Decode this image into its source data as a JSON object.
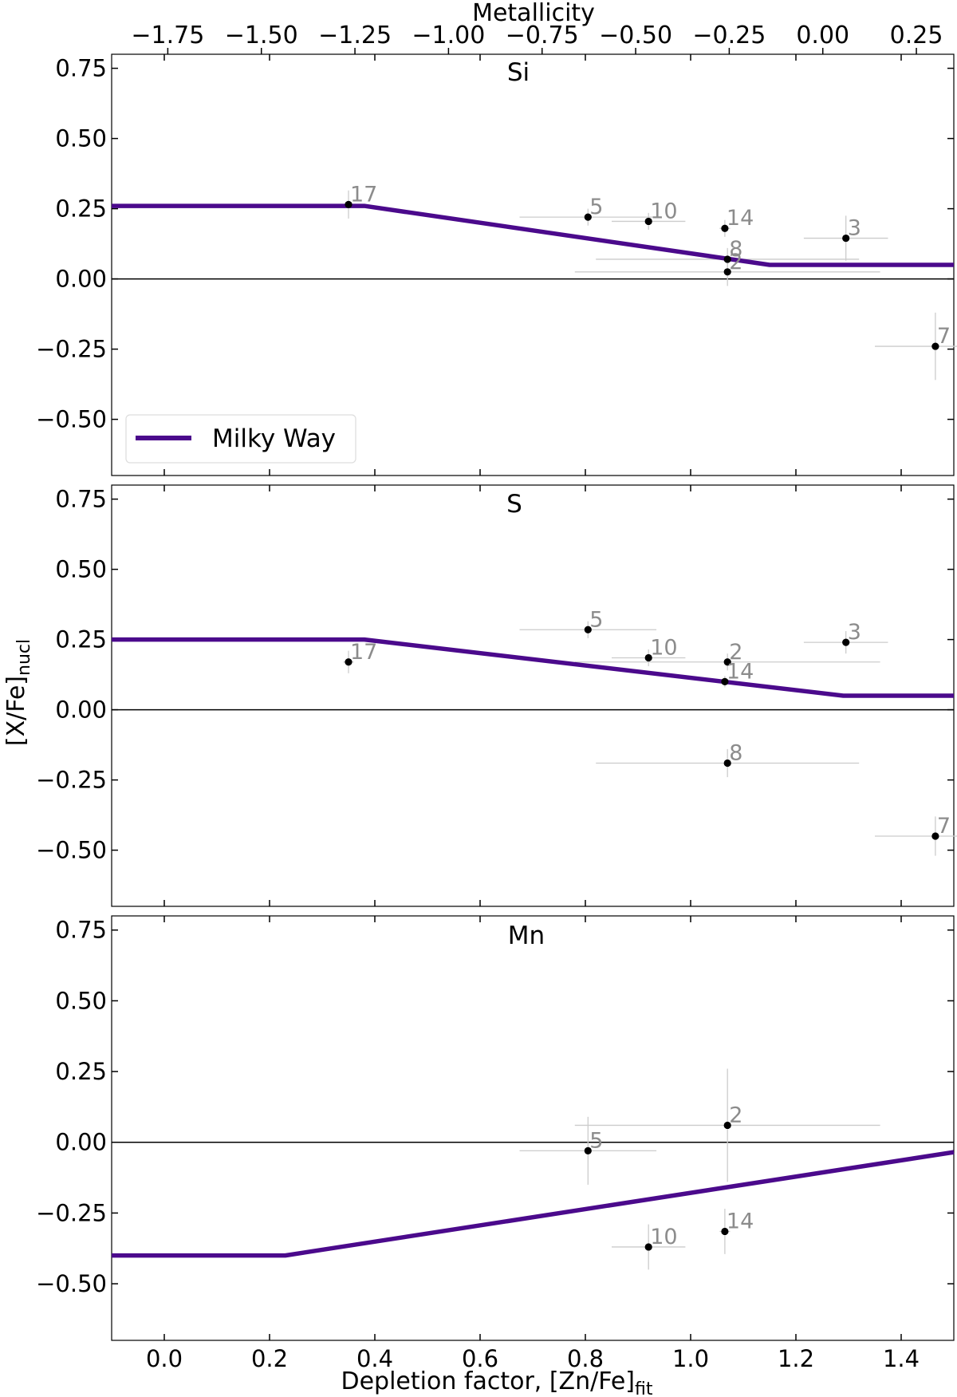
{
  "figure": {
    "top_axis_label": "Metallicity",
    "x_label_main": "Depletion factor, [Zn/Fe]",
    "x_label_sub": "fit",
    "y_label_main": "[X/Fe]",
    "y_label_sub": "nucl",
    "legend_label": "Milky Way",
    "model_color": "#4b0a8c",
    "point_color": "#000000",
    "errorbar_color": "#cccccc",
    "label_color": "#8c8c8c"
  },
  "chart_data": {
    "type": "scatter",
    "xlim": [
      -0.1,
      1.5
    ],
    "ylim": [
      -0.7,
      0.8
    ],
    "x_ticks": [
      0.0,
      0.2,
      0.4,
      0.6,
      0.8,
      1.0,
      1.2,
      1.4
    ],
    "x_tick_labels": [
      "0.0",
      "0.2",
      "0.4",
      "0.6",
      "0.8",
      "1.0",
      "1.2",
      "1.4"
    ],
    "y_ticks": [
      -0.5,
      -0.25,
      0.0,
      0.25,
      0.5,
      0.75
    ],
    "y_tick_labels": [
      "−0.50",
      "−0.25",
      "0.00",
      "0.25",
      "0.50",
      "0.75"
    ],
    "top_xlim": [
      -1.9,
      0.35
    ],
    "top_ticks": [
      -1.75,
      -1.5,
      -1.25,
      -1.0,
      -0.75,
      -0.5,
      -0.25,
      0.0,
      0.25
    ],
    "top_tick_labels": [
      "−1.75",
      "−1.50",
      "−1.25",
      "−1.00",
      "−0.75",
      "−0.50",
      "−0.25",
      "0.00",
      "0.25"
    ],
    "legend_position": "lower-left of top panel",
    "panels": [
      {
        "title": "Si",
        "model": {
          "name": "Milky Way",
          "x": [
            -0.1,
            0.38,
            1.15,
            1.5
          ],
          "y": [
            0.26,
            0.26,
            0.05,
            0.05
          ]
        },
        "points": [
          {
            "label": "17",
            "x": 0.35,
            "y": 0.265,
            "xerr": 0.01,
            "yerr": 0.05
          },
          {
            "label": "5",
            "x": 0.805,
            "y": 0.22,
            "xerr": 0.13,
            "yerr": 0.03
          },
          {
            "label": "10",
            "x": 0.92,
            "y": 0.205,
            "xerr": 0.07,
            "yerr": 0.03
          },
          {
            "label": "14",
            "x": 1.065,
            "y": 0.18,
            "xerr": 0.01,
            "yerr": 0.03
          },
          {
            "label": "3",
            "x": 1.295,
            "y": 0.145,
            "xerr": 0.08,
            "yerr": 0.08
          },
          {
            "label": "8",
            "x": 1.07,
            "y": 0.07,
            "xerr": 0.25,
            "yerr": 0.04
          },
          {
            "label": "2",
            "x": 1.07,
            "y": 0.025,
            "xerr": 0.29,
            "yerr": 0.05
          },
          {
            "label": "7",
            "x": 1.465,
            "y": -0.24,
            "xerr": 0.115,
            "yerr": 0.12
          }
        ]
      },
      {
        "title": "S",
        "model": {
          "name": "Milky Way",
          "x": [
            -0.1,
            0.38,
            1.29,
            1.5
          ],
          "y": [
            0.25,
            0.25,
            0.05,
            0.05
          ]
        },
        "points": [
          {
            "label": "17",
            "x": 0.35,
            "y": 0.17,
            "xerr": 0.01,
            "yerr": 0.04
          },
          {
            "label": "5",
            "x": 0.805,
            "y": 0.285,
            "xerr": 0.13,
            "yerr": 0.03
          },
          {
            "label": "10",
            "x": 0.92,
            "y": 0.185,
            "xerr": 0.07,
            "yerr": 0.03
          },
          {
            "label": "2",
            "x": 1.07,
            "y": 0.17,
            "xerr": 0.29,
            "yerr": 0.03
          },
          {
            "label": "14",
            "x": 1.065,
            "y": 0.1,
            "xerr": 0.01,
            "yerr": 0.02
          },
          {
            "label": "3",
            "x": 1.295,
            "y": 0.24,
            "xerr": 0.08,
            "yerr": 0.04
          },
          {
            "label": "8",
            "x": 1.07,
            "y": -0.19,
            "xerr": 0.25,
            "yerr": 0.05
          },
          {
            "label": "7",
            "x": 1.465,
            "y": -0.45,
            "xerr": 0.115,
            "yerr": 0.07
          }
        ]
      },
      {
        "title": "Mn",
        "model": {
          "name": "Milky Way",
          "x": [
            -0.1,
            0.23,
            1.5
          ],
          "y": [
            -0.4,
            -0.4,
            -0.035
          ]
        },
        "points": [
          {
            "label": "2",
            "x": 1.07,
            "y": 0.06,
            "xerr": 0.29,
            "yerr": 0.2
          },
          {
            "label": "5",
            "x": 0.805,
            "y": -0.03,
            "xerr": 0.13,
            "yerr": 0.12
          },
          {
            "label": "10",
            "x": 0.92,
            "y": -0.37,
            "xerr": 0.07,
            "yerr": 0.08
          },
          {
            "label": "14",
            "x": 1.065,
            "y": -0.315,
            "xerr": 0.01,
            "yerr": 0.08
          }
        ]
      }
    ]
  }
}
